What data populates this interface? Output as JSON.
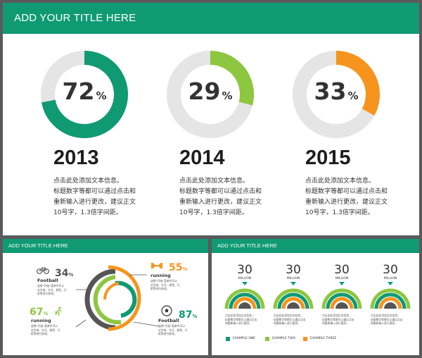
{
  "slide_main": {
    "title": "ADD YOUR TITLE HERE",
    "cards": [
      {
        "percent": "72",
        "percent_unit": "%",
        "progress_fraction": 0.72,
        "color": "#0f9a74",
        "year": "2013",
        "lines": [
          "点击此处添加文本信息。",
          "标题数字等都可以通过点击和",
          "重新输入进行更改，建议正文",
          "10号字，1.3倍字间距。"
        ]
      },
      {
        "percent": "29",
        "percent_unit": "%",
        "progress_fraction": 0.29,
        "color": "#8dc63f",
        "year": "2014",
        "lines": [
          "点击此处添加文本信息。",
          "标题数字等都可以通过点击和",
          "重新输入进行更改，建议正文",
          "10号字，1.3倍字间距。"
        ]
      },
      {
        "percent": "33",
        "percent_unit": "%",
        "progress_fraction": 0.33,
        "color": "#f7941d",
        "year": "2015",
        "lines": [
          "点击此处添加文本信息。",
          "标题数字等都可以通过点击和",
          "重新输入进行更改，建议正文",
          "10号字，1.3倍字间距。"
        ]
      }
    ]
  },
  "slide_left": {
    "title": "ADD YOUR TITLE HERE",
    "items": [
      {
        "value": "34",
        "unit": "%",
        "label": "Football",
        "icon": "bicycle-icon",
        "color": "#555555",
        "lines": [
          "选择“开始”菜单中可以",
          "对字体、字号、颜色、行",
          "距等进行修改。"
        ]
      },
      {
        "value": "55",
        "unit": "%",
        "label": "running",
        "icon": "dumbbell-icon",
        "color": "#f7941d",
        "lines": [
          "选择“开始”菜单中可以",
          "对字体、字号、颜色、行",
          "距等进行修改。"
        ]
      },
      {
        "value": "67",
        "unit": "%",
        "label": "running",
        "icon": "running-icon",
        "color": "#8dc63f",
        "lines": [
          "选择“开始”菜单中可以",
          "对字体、字号、颜色、行",
          "距等进行修改。"
        ]
      },
      {
        "value": "87",
        "unit": "%",
        "label": "Football",
        "icon": "soccer-ball-icon",
        "color": "#0f9a74",
        "lines": [
          "选择“开始”菜单中可以",
          "对字体、字号、颜色、行",
          "距等进行修改。"
        ]
      }
    ]
  },
  "slide_right": {
    "title": "ADD YOUR TITLE HERE",
    "columns": [
      {
        "value": "30",
        "unit_label": "MILLION",
        "lines": [
          "点击此处添加文本信息。",
          "标题数字等都可以通过点击",
          "和重新输入进行更改。"
        ]
      },
      {
        "value": "30",
        "unit_label": "MILLION",
        "lines": [
          "点击此处添加文本信息。",
          "标题数字等都可以通过点击",
          "和重新输入进行更改。"
        ]
      },
      {
        "value": "30",
        "unit_label": "MILLION",
        "lines": [
          "点击此处添加文本信息。",
          "标题数字等都可以通过点击",
          "和重新输入进行更改。"
        ]
      },
      {
        "value": "30",
        "unit_label": "MILLION",
        "lines": [
          "点击此处添加文本信息。",
          "标题数字等都可以通过点击",
          "和重新输入进行更改。"
        ]
      }
    ],
    "legend": [
      {
        "label": "EXAMPLE ONE",
        "color": "#0f9a74"
      },
      {
        "label": "EXAMPLE TWO",
        "color": "#8dc63f"
      },
      {
        "label": "EXAMPLE THREE",
        "color": "#f7941d"
      }
    ]
  }
}
